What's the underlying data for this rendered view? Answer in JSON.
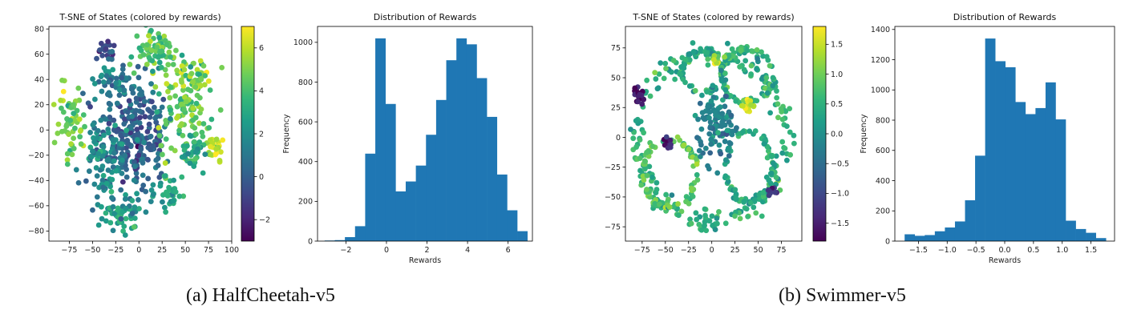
{
  "colors": {
    "bar": "#1f77b4",
    "viridis": [
      "#440154",
      "#482878",
      "#3e4989",
      "#31688e",
      "#26828e",
      "#1f9e89",
      "#35b779",
      "#6ece58",
      "#b5de2b",
      "#fde725"
    ]
  },
  "captions": {
    "a": "(a) HalfCheetah-v5",
    "b": "(b) Swimmer-v5"
  },
  "chart_data": [
    {
      "id": "hc_tsne",
      "type": "scatter",
      "title": "T-SNE of States (colored by rewards)",
      "xlabel": "",
      "ylabel": "",
      "xlim": [
        -97,
        100
      ],
      "ylim": [
        -88,
        82
      ],
      "xticks": [
        -75,
        -50,
        -25,
        0,
        25,
        50,
        75,
        100
      ],
      "xtick_labels": [
        "−75",
        "−50",
        "−25",
        "0",
        "25",
        "50",
        "75",
        "100"
      ],
      "yticks": [
        -80,
        -60,
        -40,
        -20,
        0,
        20,
        40,
        60,
        80
      ],
      "ytick_labels": [
        "−80",
        "−60",
        "−40",
        "−20",
        "0",
        "20",
        "40",
        "60",
        "80"
      ],
      "grid": false,
      "colorbar": {
        "range": [
          -3,
          7
        ],
        "ticks": [
          -2,
          0,
          2,
          4,
          6
        ],
        "tick_labels": [
          "−2",
          "0",
          "2",
          "4",
          "6"
        ]
      },
      "clusters": [
        {
          "cx": -5,
          "cy": -5,
          "rx": 35,
          "ry": 42,
          "v": 0.2,
          "n": 260
        },
        {
          "cx": -40,
          "cy": -25,
          "rx": 22,
          "ry": 30,
          "v": 2.0,
          "n": 90
        },
        {
          "cx": 48,
          "cy": 20,
          "rx": 25,
          "ry": 40,
          "v": 4.6,
          "n": 120
        },
        {
          "cx": 20,
          "cy": 62,
          "rx": 22,
          "ry": 16,
          "v": 4.0,
          "n": 70
        },
        {
          "cx": -72,
          "cy": 5,
          "rx": 14,
          "ry": 28,
          "v": 4.8,
          "n": 60
        },
        {
          "cx": -18,
          "cy": -65,
          "rx": 25,
          "ry": 12,
          "v": 2.5,
          "n": 55
        },
        {
          "cx": 80,
          "cy": -15,
          "rx": 9,
          "ry": 10,
          "v": 6.2,
          "n": 30
        },
        {
          "cx": 60,
          "cy": -18,
          "rx": 15,
          "ry": 12,
          "v": 3.0,
          "n": 35
        },
        {
          "cx": -35,
          "cy": 62,
          "rx": 9,
          "ry": 9,
          "v": -0.5,
          "n": 20
        },
        {
          "cx": -25,
          "cy": 40,
          "rx": 20,
          "ry": 12,
          "v": 1.5,
          "n": 45
        },
        {
          "cx": 30,
          "cy": -50,
          "rx": 15,
          "ry": 15,
          "v": 3.2,
          "n": 40
        },
        {
          "cx": 60,
          "cy": 40,
          "rx": 12,
          "ry": 12,
          "v": 5.5,
          "n": 30
        }
      ]
    },
    {
      "id": "hc_hist",
      "type": "bar",
      "title": "Distribution of Rewards",
      "xlabel": "Rewards",
      "ylabel": "Frequency",
      "xlim": [
        -3.4,
        7.2
      ],
      "ylim": [
        0,
        1080
      ],
      "xticks": [
        -2,
        0,
        2,
        4,
        6
      ],
      "xtick_labels": [
        "−2",
        "0",
        "2",
        "4",
        "6"
      ],
      "yticks": [
        0,
        200,
        400,
        600,
        800,
        1000
      ],
      "ytick_labels": [
        "0",
        "200",
        "400",
        "600",
        "800",
        "1000"
      ],
      "grid": false,
      "bin_start": -3.05,
      "bin_width": 0.5,
      "values": [
        3,
        5,
        20,
        75,
        440,
        1020,
        690,
        250,
        300,
        380,
        535,
        710,
        910,
        1020,
        990,
        820,
        625,
        335,
        155,
        50
      ]
    },
    {
      "id": "sw_tsne",
      "type": "scatter",
      "title": "T-SNE of States (colored by rewards)",
      "xlabel": "",
      "ylabel": "",
      "xlim": [
        -93,
        97
      ],
      "ylim": [
        -87,
        93
      ],
      "xticks": [
        -75,
        -50,
        -25,
        0,
        25,
        50,
        75
      ],
      "xtick_labels": [
        "−75",
        "−50",
        "−25",
        "0",
        "25",
        "50",
        "75"
      ],
      "yticks": [
        -75,
        -50,
        -25,
        0,
        25,
        50,
        75
      ],
      "ytick_labels": [
        "−75",
        "−50",
        "−25",
        "0",
        "25",
        "50",
        "75"
      ],
      "grid": false,
      "colorbar": {
        "range": [
          -1.8,
          1.8
        ],
        "ticks": [
          -1.5,
          -1.0,
          -0.5,
          0.0,
          0.5,
          1.0,
          1.5
        ],
        "tick_labels": [
          "−1.5",
          "−1.0",
          "−0.5",
          "0.0",
          "0.5",
          "1.0",
          "1.5"
        ]
      },
      "rings": [
        {
          "cx": 0,
          "cy": 0,
          "rx": 80,
          "ry": 70,
          "v": 0.5,
          "n": 240
        },
        {
          "cx": 38,
          "cy": 52,
          "rx": 28,
          "ry": 22,
          "v": 0.6,
          "n": 80
        },
        {
          "cx": -45,
          "cy": -30,
          "rx": 30,
          "ry": 28,
          "v": 0.8,
          "n": 90
        },
        {
          "cx": 40,
          "cy": -25,
          "rx": 25,
          "ry": 30,
          "v": 0.4,
          "n": 80
        },
        {
          "cx": -10,
          "cy": 55,
          "rx": 22,
          "ry": 18,
          "v": 0.3,
          "n": 60
        }
      ],
      "clusters": [
        {
          "cx": 5,
          "cy": 10,
          "rx": 22,
          "ry": 25,
          "v": -0.2,
          "n": 110
        },
        {
          "cx": -78,
          "cy": 35,
          "rx": 5,
          "ry": 6,
          "v": -1.6,
          "n": 18
        },
        {
          "cx": -45,
          "cy": -5,
          "rx": 6,
          "ry": 5,
          "v": -1.4,
          "n": 10
        },
        {
          "cx": 65,
          "cy": -45,
          "rx": 6,
          "ry": 4,
          "v": -1.2,
          "n": 8
        },
        {
          "cx": 40,
          "cy": 28,
          "rx": 6,
          "ry": 7,
          "v": 1.5,
          "n": 14
        },
        {
          "cx": 5,
          "cy": 65,
          "rx": 10,
          "ry": 4,
          "v": 1.3,
          "n": 12
        }
      ]
    },
    {
      "id": "sw_hist",
      "type": "bar",
      "title": "Distribution of Rewards",
      "xlabel": "Rewards",
      "ylabel": "Frequency",
      "xlim": [
        -1.91,
        1.91
      ],
      "ylim": [
        0,
        1420
      ],
      "xticks": [
        -1.5,
        -1.0,
        -0.5,
        0.0,
        0.5,
        1.0,
        1.5
      ],
      "xtick_labels": [
        "−1.5",
        "−1.0",
        "−0.5",
        "0.0",
        "0.5",
        "1.0",
        "1.5"
      ],
      "yticks": [
        0,
        200,
        400,
        600,
        800,
        1000,
        1200,
        1400
      ],
      "ytick_labels": [
        "0",
        "200",
        "400",
        "600",
        "800",
        "1000",
        "1200",
        "1400"
      ],
      "grid": false,
      "bin_start": -1.74,
      "bin_width": 0.175,
      "values": [
        45,
        35,
        40,
        65,
        90,
        130,
        270,
        565,
        1340,
        1190,
        1150,
        920,
        840,
        880,
        1050,
        805,
        135,
        80,
        55,
        20
      ]
    }
  ]
}
